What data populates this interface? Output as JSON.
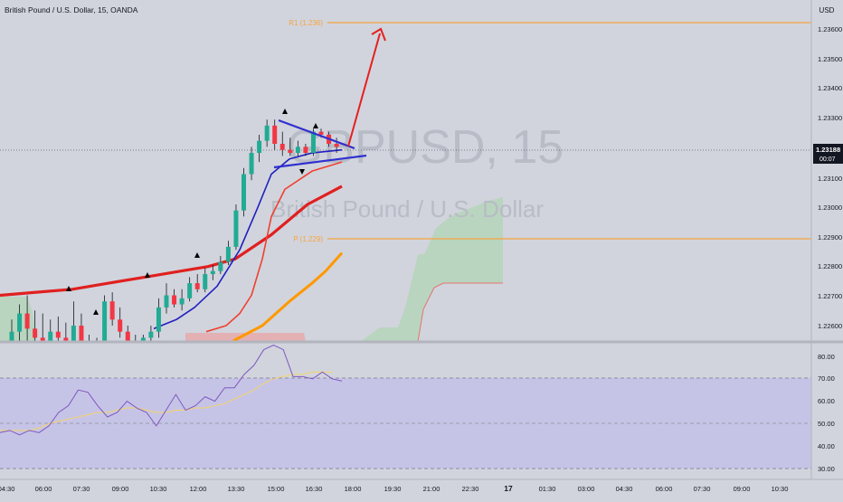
{
  "header": {
    "symbol_title": "British Pound / U.S. Dollar, 15, OANDA"
  },
  "watermark": {
    "ticker": "GBPUSD, 15",
    "name": "British Pound / U.S. Dollar"
  },
  "price_axis": {
    "currency": "USD",
    "ticks": [
      "1.23600",
      "1.23500",
      "1.23400",
      "1.23300",
      "1.23100",
      "1.23000",
      "1.22900",
      "1.22800",
      "1.22700",
      "1.22600"
    ],
    "last_price": "1.23188",
    "countdown": "00:07"
  },
  "levels": {
    "r1_label": "R1 (1.236)",
    "p_label": "P (1.229)"
  },
  "rsi_axis": {
    "ticks": [
      "80.00",
      "70.00",
      "60.00",
      "50.00",
      "40.00",
      "30.00"
    ]
  },
  "time_axis": {
    "ticks": [
      "04:30",
      "06:00",
      "07:30",
      "09:00",
      "10:30",
      "12:00",
      "13:30",
      "15:00",
      "16:30",
      "18:00",
      "19:30",
      "21:00",
      "22:30",
      "17",
      "01:30",
      "03:00",
      "04:30",
      "06:00",
      "07:30",
      "09:00",
      "10:30"
    ]
  },
  "colors": {
    "up_candle": "#22ab94",
    "down_candle": "#f23645",
    "ema_slow": "#e02020",
    "ema_mid": "#f04030",
    "ema_fast": "#2020c0",
    "ema_long": "#ff9800",
    "level_line": "#f7a540",
    "rsi_line": "#7e57c2",
    "rsi_ma": "#f2d36b",
    "cloud": "#a5d6a7",
    "arrow": "#e52020",
    "triangle": "#3030d0"
  },
  "chart_data": [
    {
      "type": "candlestick",
      "title": "British Pound / U.S. Dollar, 15, OANDA",
      "y_unit": "USD",
      "ylim": [
        1.2252,
        1.2372
      ],
      "x_range": [
        "04:30",
        "10:30 (next day)"
      ],
      "last_price": 1.23188,
      "pivot_levels": [
        {
          "name": "R1",
          "value": 1.236
        },
        {
          "name": "P",
          "value": 1.229
        }
      ],
      "candles": [
        {
          "o": 1.2253,
          "h": 1.2262,
          "l": 1.2253,
          "c": 1.2258
        },
        {
          "o": 1.2258,
          "h": 1.2267,
          "l": 1.2254,
          "c": 1.2264
        },
        {
          "o": 1.2264,
          "h": 1.227,
          "l": 1.2253,
          "c": 1.2259
        },
        {
          "o": 1.2259,
          "h": 1.2265,
          "l": 1.2253,
          "c": 1.2256
        },
        {
          "o": 1.2256,
          "h": 1.2264,
          "l": 1.2252,
          "c": 1.2255
        },
        {
          "o": 1.2255,
          "h": 1.2262,
          "l": 1.2252,
          "c": 1.2258
        },
        {
          "o": 1.2258,
          "h": 1.2263,
          "l": 1.2254,
          "c": 1.2256
        },
        {
          "o": 1.2256,
          "h": 1.2261,
          "l": 1.2252,
          "c": 1.2255
        },
        {
          "o": 1.2255,
          "h": 1.2268,
          "l": 1.2253,
          "c": 1.226
        },
        {
          "o": 1.226,
          "h": 1.2264,
          "l": 1.2252,
          "c": 1.2254
        },
        {
          "o": 1.2254,
          "h": 1.2257,
          "l": 1.2252,
          "c": 1.2253
        },
        {
          "o": 1.2253,
          "h": 1.2256,
          "l": 1.2252,
          "c": 1.2254
        },
        {
          "o": 1.2254,
          "h": 1.227,
          "l": 1.2252,
          "c": 1.2268
        },
        {
          "o": 1.2268,
          "h": 1.2271,
          "l": 1.226,
          "c": 1.2262
        },
        {
          "o": 1.2262,
          "h": 1.2266,
          "l": 1.2256,
          "c": 1.2258
        },
        {
          "o": 1.2258,
          "h": 1.226,
          "l": 1.2252,
          "c": 1.2254
        },
        {
          "o": 1.2254,
          "h": 1.2257,
          "l": 1.2252,
          "c": 1.2253
        },
        {
          "o": 1.2253,
          "h": 1.2257,
          "l": 1.2252,
          "c": 1.2256
        },
        {
          "o": 1.2256,
          "h": 1.226,
          "l": 1.2253,
          "c": 1.2258
        },
        {
          "o": 1.2258,
          "h": 1.2269,
          "l": 1.2256,
          "c": 1.2266
        },
        {
          "o": 1.2266,
          "h": 1.2274,
          "l": 1.2264,
          "c": 1.227
        },
        {
          "o": 1.227,
          "h": 1.2272,
          "l": 1.2266,
          "c": 1.2267
        },
        {
          "o": 1.2267,
          "h": 1.2272,
          "l": 1.2265,
          "c": 1.2269
        },
        {
          "o": 1.2269,
          "h": 1.2276,
          "l": 1.2268,
          "c": 1.2274
        },
        {
          "o": 1.2274,
          "h": 1.2277,
          "l": 1.2271,
          "c": 1.2272
        },
        {
          "o": 1.2272,
          "h": 1.2279,
          "l": 1.2271,
          "c": 1.2277
        },
        {
          "o": 1.2277,
          "h": 1.228,
          "l": 1.2275,
          "c": 1.2278
        },
        {
          "o": 1.2278,
          "h": 1.2283,
          "l": 1.2277,
          "c": 1.2281
        },
        {
          "o": 1.2281,
          "h": 1.2288,
          "l": 1.228,
          "c": 1.2286
        },
        {
          "o": 1.2286,
          "h": 1.23,
          "l": 1.2285,
          "c": 1.2298
        },
        {
          "o": 1.2298,
          "h": 1.2312,
          "l": 1.2296,
          "c": 1.231
        },
        {
          "o": 1.231,
          "h": 1.2319,
          "l": 1.2308,
          "c": 1.2317
        },
        {
          "o": 1.2317,
          "h": 1.2323,
          "l": 1.2314,
          "c": 1.2321
        },
        {
          "o": 1.2321,
          "h": 1.2328,
          "l": 1.2319,
          "c": 1.2326
        },
        {
          "o": 1.2326,
          "h": 1.2328,
          "l": 1.2318,
          "c": 1.232
        },
        {
          "o": 1.232,
          "h": 1.2324,
          "l": 1.2316,
          "c": 1.2318
        },
        {
          "o": 1.2318,
          "h": 1.2322,
          "l": 1.2316,
          "c": 1.2317
        },
        {
          "o": 1.2317,
          "h": 1.2321,
          "l": 1.2316,
          "c": 1.2319
        },
        {
          "o": 1.2319,
          "h": 1.232,
          "l": 1.2316,
          "c": 1.2317
        },
        {
          "o": 1.2317,
          "h": 1.2325,
          "l": 1.2316,
          "c": 1.2324
        },
        {
          "o": 1.2324,
          "h": 1.2325,
          "l": 1.2322,
          "c": 1.2323
        },
        {
          "o": 1.2323,
          "h": 1.2324,
          "l": 1.2319,
          "c": 1.232
        },
        {
          "o": 1.232,
          "h": 1.2322,
          "l": 1.2317,
          "c": 1.2319
        }
      ],
      "ema_series": [
        {
          "color": "#e02020",
          "values": [
            1.227,
            1.2271,
            1.2272,
            1.2274,
            1.2276,
            1.2278,
            1.22795,
            1.2282,
            1.229,
            1.23,
            1.2306
          ]
        },
        {
          "color": "#f04030",
          "values": [
            1.2258,
            1.226,
            1.2264,
            1.227,
            1.2282,
            1.2296,
            1.2305,
            1.2311,
            1.2314
          ]
        },
        {
          "color": "#2020c0",
          "values": [
            1.2259,
            1.2262,
            1.2266,
            1.2273,
            1.2285,
            1.2299,
            1.231,
            1.2315,
            1.2317,
            1.2318
          ]
        },
        {
          "color": "#ff9800",
          "values": [
            1.2255,
            1.226,
            1.2268,
            1.2274,
            1.2278,
            1.2284
          ]
        }
      ]
    },
    {
      "type": "line",
      "title": "RSI",
      "ylim": [
        28,
        84
      ],
      "bands": [
        30,
        50,
        70
      ],
      "series": [
        {
          "values": [
            46,
            47,
            45,
            47,
            46,
            49,
            55,
            58,
            65,
            64,
            58,
            53,
            55,
            60,
            57,
            55,
            49,
            56,
            63,
            56,
            58,
            62,
            60,
            66,
            66,
            72,
            76,
            83,
            85,
            83,
            71,
            71,
            70,
            73,
            70,
            69
          ]
        },
        {
          "values": [
            47,
            47,
            47,
            47,
            48,
            50,
            51,
            52,
            53,
            54,
            55,
            55,
            56,
            57,
            57,
            56,
            55,
            55,
            56,
            56,
            57,
            57,
            58,
            59,
            61,
            63,
            65,
            68,
            70,
            71,
            72,
            72,
            73,
            73,
            73
          ]
        }
      ]
    }
  ]
}
